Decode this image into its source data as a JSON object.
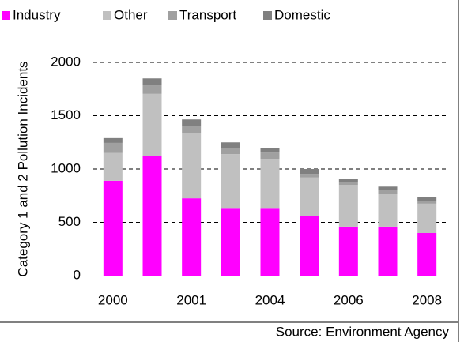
{
  "chart_data": {
    "type": "stacked_bar",
    "y_label": "Category 1 and 2 Pollution Incidents",
    "annotation": "Source: Environment Agency",
    "categories": [
      "2000",
      null,
      "2001",
      null,
      "2004",
      null,
      "2006",
      null,
      "2008"
    ],
    "series": [
      {
        "name": "Industry",
        "color": "#ff00ff",
        "values": [
          890,
          1125,
          725,
          635,
          635,
          560,
          460,
          460,
          400
        ]
      },
      {
        "name": "Other",
        "color": "#c0c0c0",
        "values": [
          260,
          580,
          610,
          505,
          460,
          360,
          390,
          310,
          275
        ]
      },
      {
        "name": "Transport",
        "color": "#a0a0a0",
        "values": [
          95,
          80,
          65,
          60,
          60,
          35,
          25,
          30,
          25
        ]
      },
      {
        "name": "Domestic",
        "color": "#808080",
        "values": [
          45,
          65,
          65,
          50,
          45,
          45,
          35,
          35,
          35
        ]
      }
    ],
    "ylim": [
      0,
      2000
    ],
    "yticks": [
      0,
      500,
      1000,
      1500,
      2000
    ],
    "grid": true,
    "legend": "top"
  }
}
